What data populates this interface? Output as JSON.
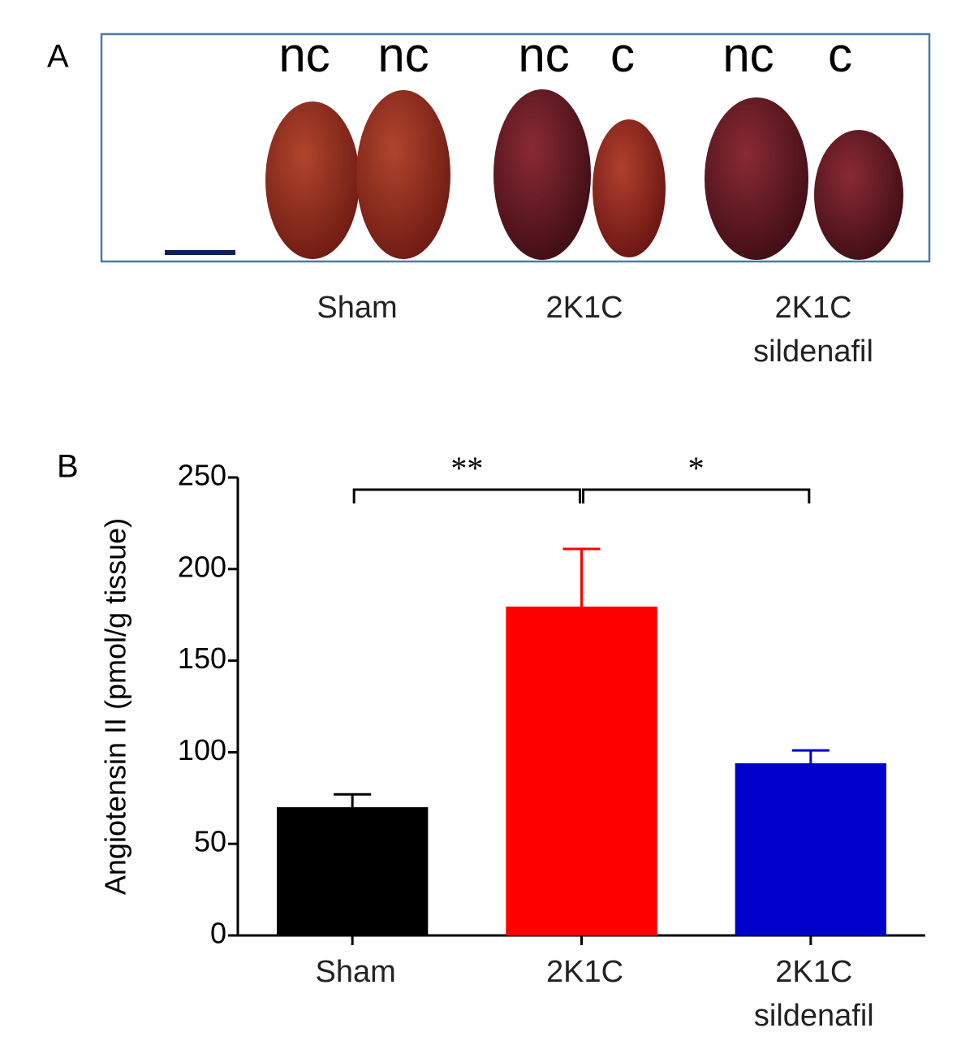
{
  "panel_a": {
    "label": "A",
    "kidney_labels": [
      "nc",
      "nc",
      "nc",
      "c",
      "nc",
      "c"
    ],
    "groups": [
      "Sham",
      "2K1C",
      "2K1C\nsildenafil"
    ]
  },
  "panel_b_label": "B",
  "chart_data": {
    "type": "bar",
    "y_label": "Angiotensin II (pmol/g tissue)",
    "categories": [
      "Sham",
      "2K1C",
      "2K1C\nsildenafil"
    ],
    "values": [
      70,
      179.5,
      94
    ],
    "errors": [
      7,
      31.5,
      7
    ],
    "colors": [
      "#000000",
      "#ff0000",
      "#0000cc"
    ],
    "ylim": [
      0,
      250
    ],
    "yticks": [
      0,
      50,
      100,
      150,
      200,
      250
    ],
    "grid": false,
    "annotations": [
      "**",
      "*"
    ]
  }
}
